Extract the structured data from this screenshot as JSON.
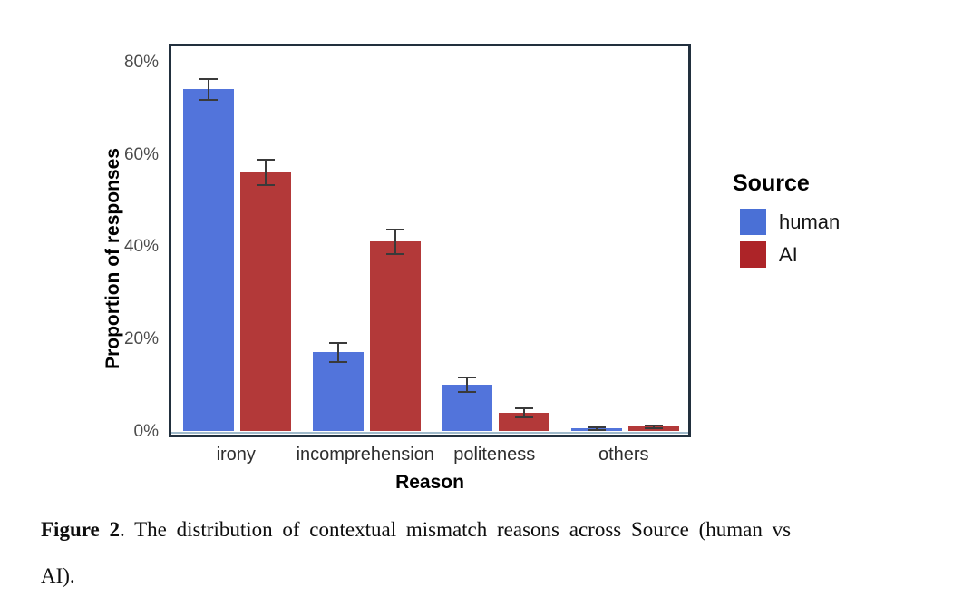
{
  "chart_data": {
    "type": "bar",
    "title": "",
    "xlabel": "Reason",
    "ylabel": "Proportion of responses",
    "categories": [
      "irony",
      "incomprehension",
      "politeness",
      "others"
    ],
    "series": [
      {
        "name": "human",
        "color": "#5274DB",
        "legend_color": "#4A70D6",
        "values": [
          74,
          17,
          10,
          0.5
        ],
        "errors": [
          2.5,
          2.2,
          1.8,
          0.4
        ]
      },
      {
        "name": "AI",
        "color": "#B33939",
        "legend_color": "#AD2428",
        "values": [
          56,
          41,
          4,
          0.9
        ],
        "errors": [
          2.9,
          2.9,
          1.2,
          0.5
        ]
      }
    ],
    "y_ticks": [
      "0%",
      "20%",
      "40%",
      "60%",
      "80%"
    ],
    "ylim": [
      0,
      84
    ],
    "unit": "%",
    "grid": false,
    "error_bars": true,
    "error_bar_color": "#3a3a3a",
    "panel_border_color": "#22303E",
    "legend_title": "Source",
    "legend_position": "right"
  },
  "caption": {
    "bold": "Figure 2",
    "line1_rest": ". The distribution of contextual mismatch reasons across Source (human vs",
    "line2": "AI)."
  }
}
